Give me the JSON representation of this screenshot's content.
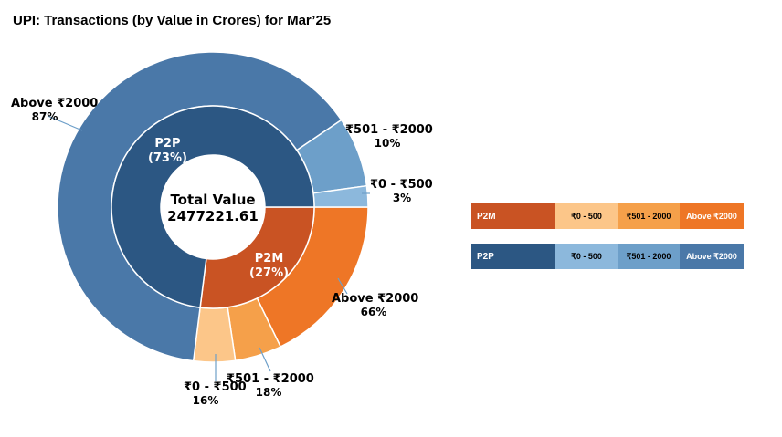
{
  "title": "UPI: Transactions (by Value in Crores) for Mar’25",
  "chart_data": {
    "type": "pie",
    "subtype": "nested-donut",
    "center_label": {
      "line1": "Total Value",
      "line2": "2477221.61"
    },
    "inner": [
      {
        "name": "P2P",
        "percent": 73,
        "label": "P2P",
        "pct_label": "(73%)",
        "color": "#2c5783"
      },
      {
        "name": "P2M",
        "percent": 27,
        "label": "P2M",
        "pct_label": "(27%)",
        "color": "#c95323"
      }
    ],
    "outer": {
      "P2P": [
        {
          "name": "Above ₹2000",
          "percent": 87,
          "label": "Above ₹2000",
          "pct_label": "87%",
          "color": "#4a78a8"
        },
        {
          "name": "₹501 - ₹2000",
          "percent": 10,
          "label": "₹501 - ₹2000",
          "pct_label": "10%",
          "color": "#6d9fc9"
        },
        {
          "name": "₹0 - ₹500",
          "percent": 3,
          "label": "₹0 - ₹500",
          "pct_label": "3%",
          "color": "#8cb8dc"
        }
      ],
      "P2M": [
        {
          "name": "Above ₹2000",
          "percent": 66,
          "label": "Above ₹2000",
          "pct_label": "66%",
          "color": "#ee7626"
        },
        {
          "name": "₹501 - ₹2000",
          "percent": 18,
          "label": "₹501 - ₹2000",
          "pct_label": "18%",
          "color": "#f5a04a"
        },
        {
          "name": "₹0 - ₹500",
          "percent": 16,
          "label": "₹0 - ₹500",
          "pct_label": "16%",
          "color": "#fcc689"
        }
      ]
    }
  },
  "legend": {
    "rows": [
      {
        "name": "P2M",
        "name_color": "#c95323",
        "cells": [
          {
            "label": "₹0 - 500",
            "color": "#fcc689"
          },
          {
            "label": "₹501 - 2000",
            "color": "#f5a04a"
          },
          {
            "label": "Above ₹2000",
            "color": "#ee7626"
          }
        ]
      },
      {
        "name": "P2P",
        "name_color": "#2c5783",
        "cells": [
          {
            "label": "₹0 - 500",
            "color": "#8cb8dc"
          },
          {
            "label": "₹501 - 2000",
            "color": "#6d9fc9"
          },
          {
            "label": "Above ₹2000",
            "color": "#4a78a8"
          }
        ]
      }
    ]
  }
}
